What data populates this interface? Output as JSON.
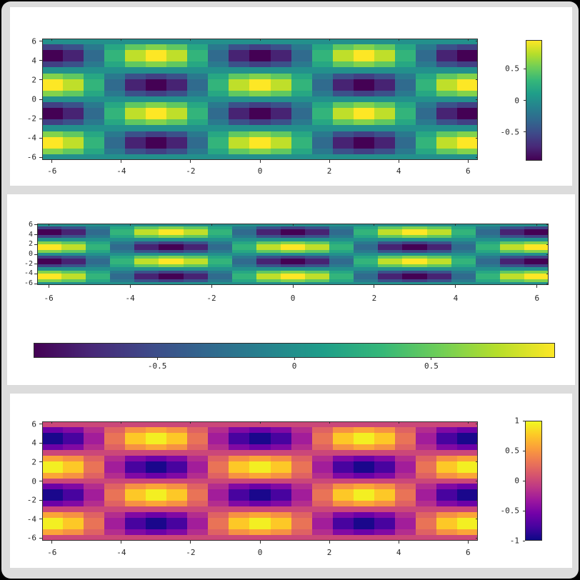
{
  "figure": {
    "background": "#000000",
    "frame_color": "#dcdcdc",
    "panel_color": "#ffffff",
    "axis_color": "#2f2f2f",
    "tick_label_color": "#262626"
  },
  "colormaps": {
    "viridis": [
      "#440154",
      "#482878",
      "#3e4a89",
      "#31688e",
      "#26828e",
      "#1f9e89",
      "#35b779",
      "#6ece58",
      "#b5de2b",
      "#fde725"
    ],
    "plasma": [
      "#0d0887",
      "#46039f",
      "#7201a8",
      "#9c179e",
      "#bd3786",
      "#d8576b",
      "#ed7953",
      "#fb9f3a",
      "#fdca26",
      "#f0f921"
    ]
  },
  "grid": {
    "x_min": -6.2832,
    "x_max": 6.2832,
    "y_min": -6.2832,
    "y_max": 6.2832,
    "n_points": 21,
    "function": "f(x,y) = cos(x)*sin(y)",
    "cos_x_profile": [
      1,
      0.809,
      0.309,
      -0.309,
      -0.809,
      -1,
      -0.809,
      -0.309,
      0.309,
      0.809,
      1,
      0.809,
      0.309,
      -0.309,
      -0.809,
      -1,
      -0.809,
      -0.309,
      0.309,
      0.809,
      1
    ],
    "sin_y_profile_top_to_bottom": [
      0,
      -0.588,
      -0.951,
      -0.951,
      -0.588,
      0,
      0.588,
      0.951,
      0.951,
      0.588,
      0,
      -0.588,
      -0.951,
      -0.951,
      -0.588,
      0,
      0.588,
      0.951,
      0.951,
      0.588,
      0
    ]
  },
  "chart_data": [
    {
      "id": "top-heatmap",
      "type": "heatmap",
      "colormap": "viridis",
      "x_range": [
        -6.2832,
        6.2832
      ],
      "y_range": [
        -6.2832,
        6.2832
      ],
      "values": "outer product: rows = grid.sin_y_profile_top_to_bottom, cols = grid.cos_x_profile",
      "clim": [
        -0.951,
        0.951
      ],
      "xtick_values": [
        -6,
        -4,
        -2,
        0,
        2,
        4,
        6
      ],
      "xtick_labels": [
        "-6",
        "-4",
        "-2",
        "0",
        "2",
        "4",
        "6"
      ],
      "ytick_values": [
        6,
        4,
        2,
        0,
        -2,
        -4,
        -6
      ],
      "ytick_labels": [
        "6",
        "4",
        "2",
        "0",
        "-2",
        "-4",
        "-6"
      ],
      "colorbar": {
        "orientation": "vertical",
        "range": [
          -0.951,
          0.951
        ],
        "tick_values": [
          0.5,
          0,
          -0.5
        ],
        "tick_labels": [
          "0.5",
          "0",
          "-0.5"
        ]
      }
    },
    {
      "id": "middle-heatmap",
      "type": "heatmap",
      "colormap": "viridis",
      "x_range": [
        -6.2832,
        6.2832
      ],
      "y_range": [
        -6.2832,
        6.2832
      ],
      "values": "outer product: rows = grid.sin_y_profile_top_to_bottom, cols = grid.cos_x_profile",
      "clim": [
        -0.951,
        0.951
      ],
      "xtick_values": [
        -6,
        -4,
        -2,
        0,
        2,
        4,
        6
      ],
      "xtick_labels": [
        "-6",
        "-4",
        "-2",
        "0",
        "2",
        "4",
        "6"
      ],
      "ytick_values": [
        6,
        4,
        2,
        0,
        -2,
        -4,
        -6
      ],
      "ytick_labels": [
        "6",
        "4",
        "2",
        "0",
        "-2",
        "-4",
        "-6"
      ],
      "colorbar": {
        "orientation": "horizontal",
        "range": [
          -0.951,
          0.951
        ],
        "tick_values": [
          -0.5,
          0,
          0.5
        ],
        "tick_labels": [
          "-0.5",
          "0",
          "0.5"
        ]
      }
    },
    {
      "id": "bottom-heatmap",
      "type": "heatmap",
      "colormap": "plasma",
      "x_range": [
        -6.2832,
        6.2832
      ],
      "y_range": [
        -6.2832,
        6.2832
      ],
      "values": "outer product: rows = grid.sin_y_profile_top_to_bottom, cols = grid.cos_x_profile",
      "clim": [
        -1,
        1
      ],
      "xtick_values": [
        -6,
        -4,
        -2,
        0,
        2,
        4,
        6
      ],
      "xtick_labels": [
        "-6",
        "-4",
        "-2",
        "0",
        "2",
        "4",
        "6"
      ],
      "ytick_values": [
        6,
        4,
        2,
        0,
        -2,
        -4,
        -6
      ],
      "ytick_labels": [
        "6",
        "4",
        "2",
        "0",
        "-2",
        "-4",
        "-6"
      ],
      "colorbar": {
        "orientation": "vertical",
        "range": [
          -1,
          1
        ],
        "tick_values": [
          1,
          0.5,
          0,
          -0.5,
          -1
        ],
        "tick_labels": [
          "1",
          "0.5",
          "0",
          "-0.5",
          "-1"
        ]
      }
    }
  ]
}
